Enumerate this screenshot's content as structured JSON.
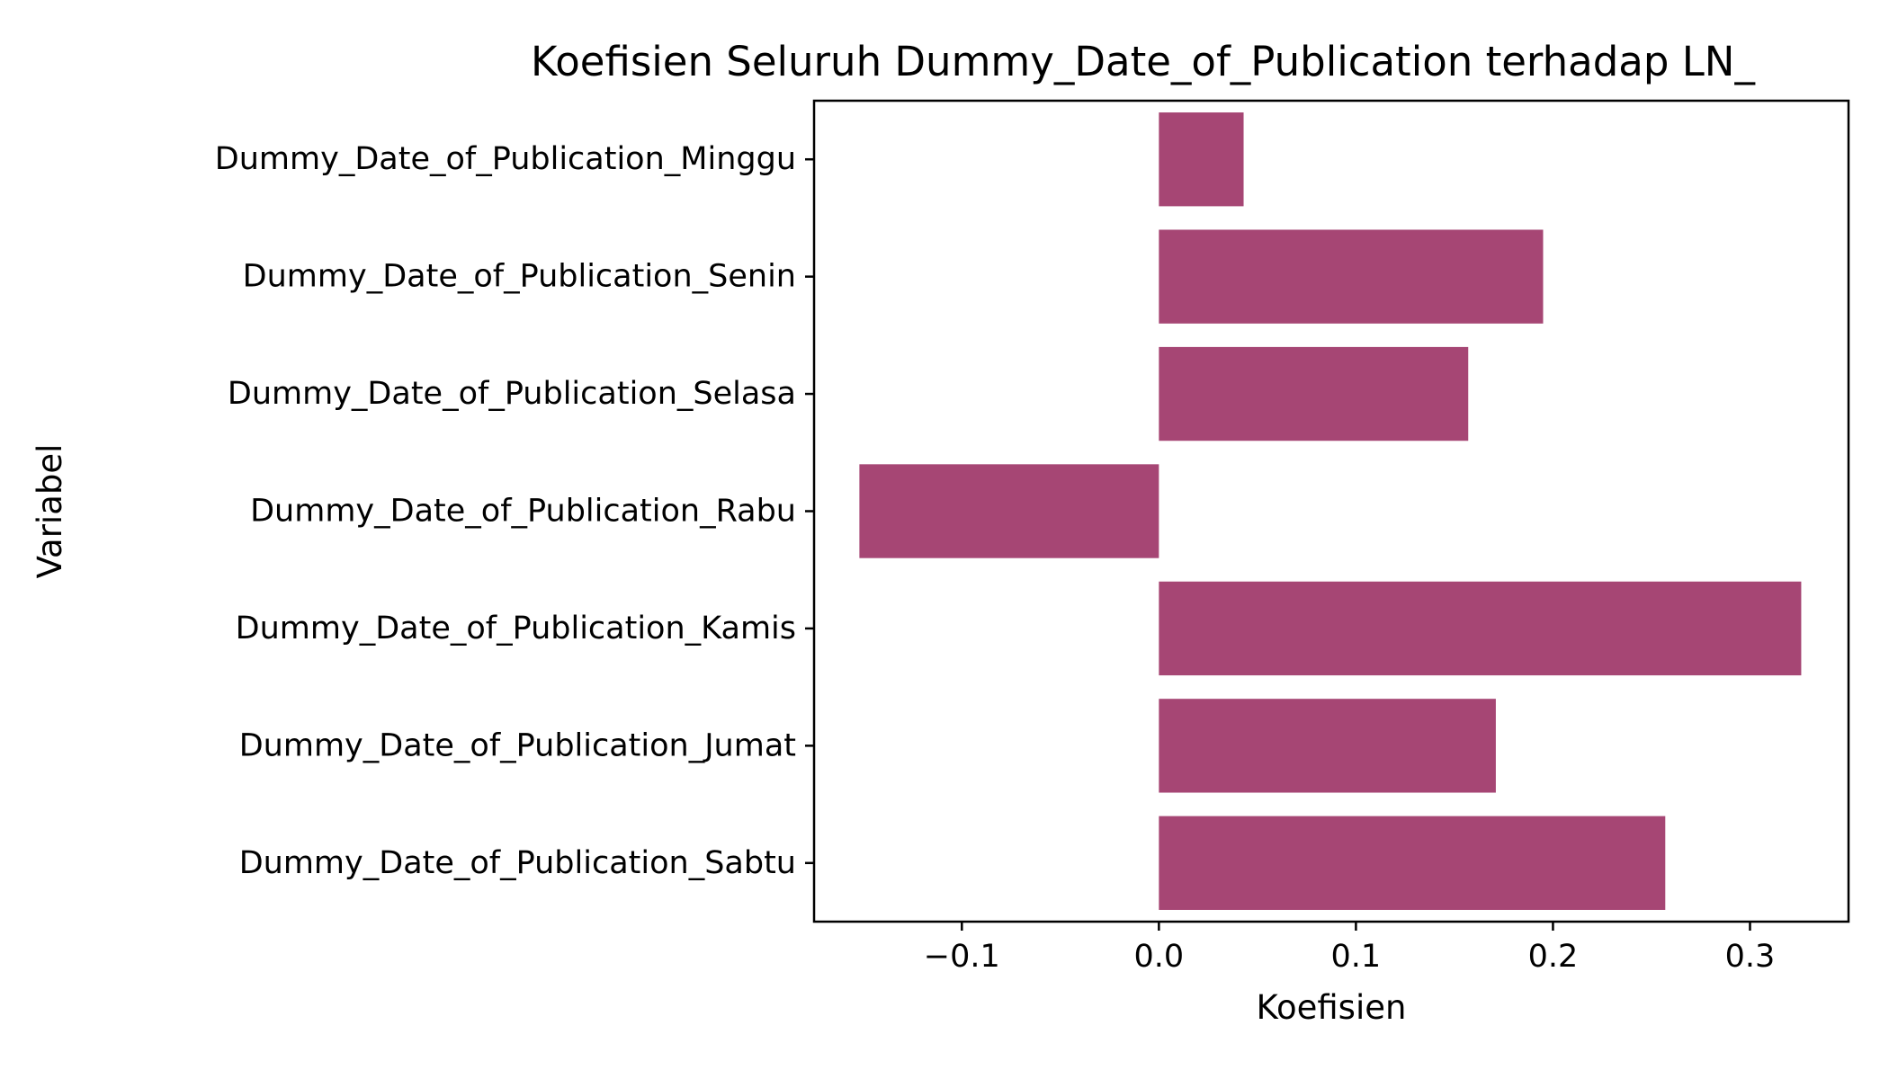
{
  "chart_data": {
    "type": "bar",
    "orientation": "horizontal",
    "title": "Koefisien Seluruh Dummy_Date_of_Publication terhadap LN_",
    "xlabel": "Koefisien",
    "ylabel": "Variabel",
    "categories": [
      "Dummy_Date_of_Publication_Minggu",
      "Dummy_Date_of_Publication_Senin",
      "Dummy_Date_of_Publication_Selasa",
      "Dummy_Date_of_Publication_Rabu",
      "Dummy_Date_of_Publication_Kamis",
      "Dummy_Date_of_Publication_Jumat",
      "Dummy_Date_of_Publication_Sabtu"
    ],
    "values": [
      0.043,
      0.195,
      0.157,
      -0.152,
      0.326,
      0.171,
      0.257
    ],
    "xlim": [
      -0.175,
      0.35
    ],
    "xticks": [
      -0.1,
      0.0,
      0.1,
      0.2,
      0.3
    ],
    "xtick_labels": [
      "−0.1",
      "0.0",
      "0.1",
      "0.2",
      "0.3"
    ],
    "grid": false,
    "bar_color": "#a64674"
  }
}
